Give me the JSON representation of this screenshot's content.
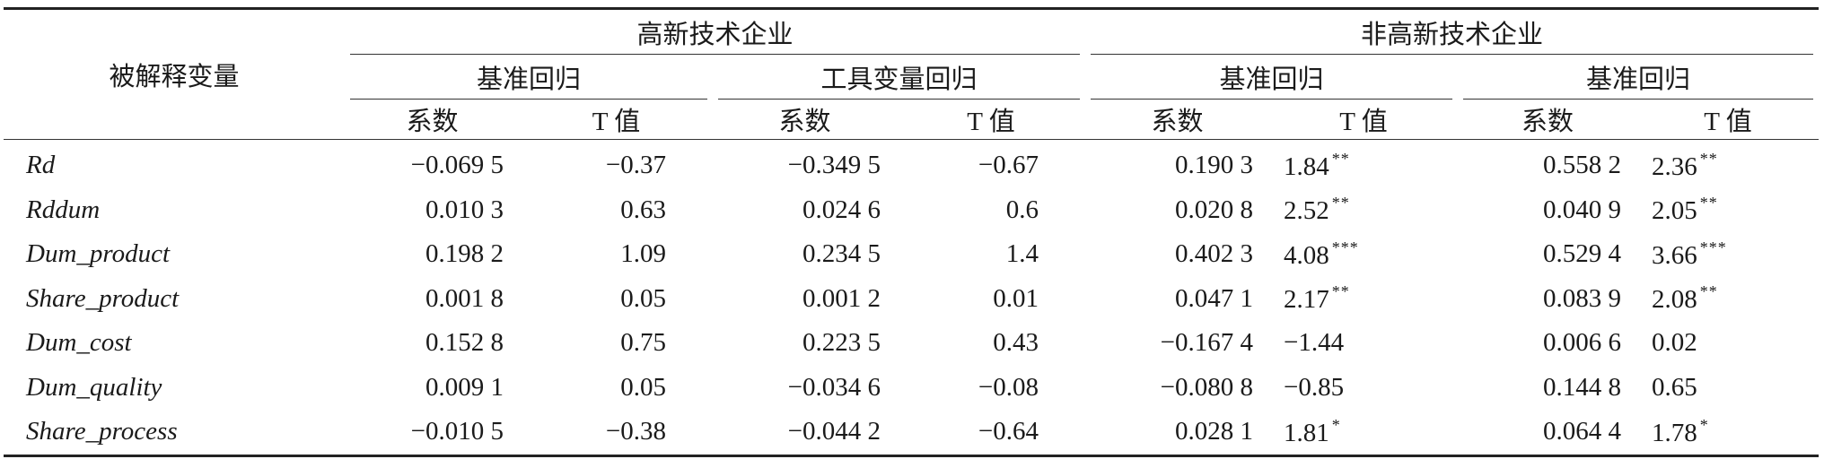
{
  "header": {
    "row_label": "被解释变量",
    "groups": [
      {
        "label": "高新技术企业"
      },
      {
        "label": "非高新技术企业"
      }
    ],
    "subgroups": [
      {
        "label": "基准回归"
      },
      {
        "label": "工具变量回归"
      },
      {
        "label": "基准回归"
      },
      {
        "label": "基准回归"
      }
    ],
    "coef_label": "系数",
    "t_label": "T 值"
  },
  "rows": [
    {
      "var": "Rd",
      "c1": "−0.069 5",
      "t1": "−0.37",
      "c2": "−0.349 5",
      "t2": "−0.67",
      "c3": "0.190 3",
      "t3": "1.84",
      "s3": "**",
      "c4": "0.558 2",
      "t4": "2.36",
      "s4": "**"
    },
    {
      "var": "Rddum",
      "c1": "0.010 3",
      "t1": "0.63",
      "c2": "0.024 6",
      "t2": "0.6",
      "c3": "0.020 8",
      "t3": "2.52",
      "s3": "**",
      "c4": "0.040 9",
      "t4": "2.05",
      "s4": "**"
    },
    {
      "var": "Dum_product",
      "c1": "0.198 2",
      "t1": "1.09",
      "c2": "0.234 5",
      "t2": "1.4",
      "c3": "0.402 3",
      "t3": "4.08",
      "s3": "***",
      "c4": "0.529 4",
      "t4": "3.66",
      "s4": "***"
    },
    {
      "var": "Share_product",
      "c1": "0.001 8",
      "t1": "0.05",
      "c2": "0.001 2",
      "t2": "0.01",
      "c3": "0.047 1",
      "t3": "2.17",
      "s3": "**",
      "c4": "0.083 9",
      "t4": "2.08",
      "s4": "**"
    },
    {
      "var": "Dum_cost",
      "c1": "0.152 8",
      "t1": "0.75",
      "c2": "0.223 5",
      "t2": "0.43",
      "c3": "−0.167 4",
      "t3": "−1.44",
      "s3": "",
      "c4": "0.006 6",
      "t4": "0.02",
      "s4": ""
    },
    {
      "var": "Dum_quality",
      "c1": "0.009 1",
      "t1": "0.05",
      "c2": "−0.034 6",
      "t2": "−0.08",
      "c3": "−0.080 8",
      "t3": "−0.85",
      "s3": "",
      "c4": "0.144 8",
      "t4": "0.65",
      "s4": ""
    },
    {
      "var": "Share_process",
      "c1": "−0.010 5",
      "t1": "−0.38",
      "c2": "−0.044 2",
      "t2": "−0.64",
      "c3": "0.028 1",
      "t3": "1.81",
      "s3": "*",
      "c4": "0.064 4",
      "t4": "1.78",
      "s4": "*"
    }
  ]
}
